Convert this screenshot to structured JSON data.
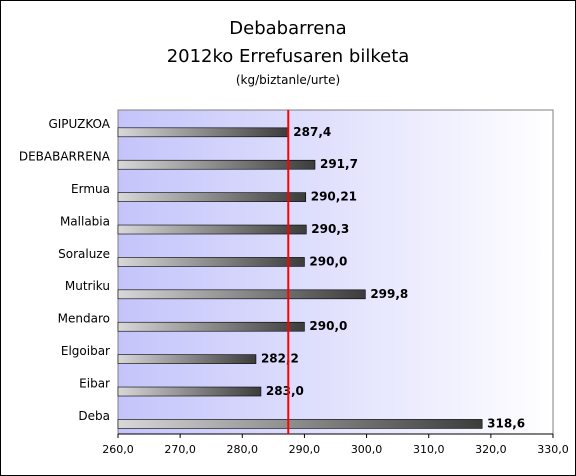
{
  "chart_data": {
    "type": "bar",
    "orientation": "horizontal",
    "title": "Debabarrena",
    "subtitle": "2012ko Errefusaren bilketa",
    "unit_label": "(kg/biztanle/urte)",
    "categories": [
      "GIPUZKOA",
      "DEBABARRENA",
      "Ermua",
      "Mallabia",
      "Soraluze",
      "Mutriku",
      "Mendaro",
      "Elgoibar",
      "Eibar",
      "Deba"
    ],
    "values": [
      287.4,
      291.7,
      290.21,
      290.3,
      290.0,
      299.8,
      290.0,
      282.2,
      283.0,
      318.6
    ],
    "value_labels": [
      "287,4",
      "291,7",
      "290,21",
      "290,3",
      "290,0",
      "299,8",
      "290,0",
      "282,2",
      "283,0",
      "318,6"
    ],
    "xlim": [
      260,
      330
    ],
    "x_ticks": [
      260,
      270,
      280,
      290,
      300,
      310,
      320,
      330
    ],
    "x_tick_labels": [
      "260,0",
      "270,0",
      "280,0",
      "290,0",
      "300,0",
      "310,0",
      "320,0",
      "330,0"
    ],
    "reference_line": {
      "value": 287.4,
      "color": "#ff0000"
    },
    "colors": {
      "bar_start": "#d8d8d8",
      "bar_end": "#3c3c3c",
      "plot_bg_left": "#c4c4fb",
      "plot_bg_right": "#ffffff"
    },
    "grid": false,
    "legend": "none"
  }
}
